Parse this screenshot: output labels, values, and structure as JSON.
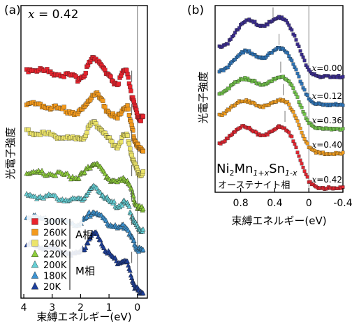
{
  "chart_data": [
    {
      "panel_label": "(a)",
      "type": "scatter",
      "annotation": "x = 0.42",
      "annotation_var": "x",
      "annotation_rest": " = 0.42",
      "xlabel": "束縛エネルギー(eV)",
      "ylabel": "光電子強度",
      "xlim": [
        4.1,
        -0.35
      ],
      "x_ticks": [
        4,
        3,
        2,
        1,
        0
      ],
      "x_tick_labels": [
        "4",
        "3",
        "2",
        "1",
        "0"
      ],
      "legend_groups": [
        {
          "name": "A相",
          "series_index": [
            0,
            1,
            2
          ]
        },
        {
          "name": "M相",
          "series_index": [
            3,
            4,
            5,
            6
          ]
        }
      ],
      "series": [
        {
          "name": "300K",
          "marker": "square",
          "color": "#e8232d",
          "fermi_step": 0.1,
          "x": [
            3.9,
            3.6,
            3.3,
            3.0,
            2.7,
            2.4,
            2.1,
            1.9,
            1.7,
            1.5,
            1.3,
            1.1,
            0.9,
            0.7,
            0.5,
            0.35,
            0.2,
            0.1,
            0.0,
            -0.1,
            -0.2
          ],
          "y": [
            0.64,
            0.64,
            0.62,
            0.6,
            0.58,
            0.55,
            0.52,
            0.56,
            0.72,
            0.8,
            0.72,
            0.58,
            0.5,
            0.44,
            0.6,
            0.6,
            0.3,
            0.15,
            0.05,
            0.0,
            0.0
          ]
        },
        {
          "name": "260K",
          "marker": "square",
          "color": "#f39a1d",
          "fermi_step": 0.1,
          "x": [
            3.9,
            3.6,
            3.3,
            3.0,
            2.7,
            2.4,
            2.1,
            1.9,
            1.7,
            1.5,
            1.3,
            1.1,
            0.9,
            0.7,
            0.5,
            0.35,
            0.2,
            0.1,
            0.0,
            -0.1,
            -0.2
          ],
          "y": [
            0.62,
            0.62,
            0.6,
            0.58,
            0.56,
            0.53,
            0.5,
            0.55,
            0.7,
            0.78,
            0.7,
            0.56,
            0.48,
            0.42,
            0.58,
            0.58,
            0.3,
            0.15,
            0.05,
            0.0,
            0.0
          ]
        },
        {
          "name": "240K",
          "marker": "square",
          "color": "#ece46a",
          "fermi_step": 0.1,
          "x": [
            3.9,
            3.6,
            3.3,
            3.0,
            2.7,
            2.4,
            2.1,
            1.9,
            1.7,
            1.5,
            1.3,
            1.1,
            0.9,
            0.7,
            0.5,
            0.35,
            0.2,
            0.1,
            0.0,
            -0.1,
            -0.2
          ],
          "y": [
            0.6,
            0.6,
            0.58,
            0.56,
            0.54,
            0.51,
            0.49,
            0.53,
            0.67,
            0.75,
            0.67,
            0.54,
            0.46,
            0.4,
            0.55,
            0.55,
            0.28,
            0.14,
            0.05,
            0.0,
            0.0
          ]
        },
        {
          "name": "220K",
          "marker": "triangle",
          "color": "#8fcf3c",
          "fermi_step": 0.1,
          "x": [
            3.9,
            3.6,
            3.3,
            3.0,
            2.7,
            2.4,
            2.1,
            1.9,
            1.7,
            1.5,
            1.3,
            1.1,
            0.9,
            0.7,
            0.5,
            0.35,
            0.2,
            0.1,
            0.0,
            -0.1,
            -0.2
          ],
          "y": [
            0.52,
            0.52,
            0.51,
            0.5,
            0.49,
            0.47,
            0.46,
            0.5,
            0.6,
            0.66,
            0.58,
            0.48,
            0.42,
            0.38,
            0.45,
            0.42,
            0.24,
            0.12,
            0.04,
            0.0,
            0.0
          ]
        },
        {
          "name": "200K",
          "marker": "triangle",
          "color": "#66d0d6",
          "fermi_step": 0.1,
          "x": [
            3.9,
            3.6,
            3.3,
            3.0,
            2.7,
            2.4,
            2.1,
            1.9,
            1.7,
            1.5,
            1.3,
            1.1,
            0.9,
            0.7,
            0.5,
            0.35,
            0.2,
            0.1,
            0.0,
            -0.1,
            -0.2
          ],
          "y": [
            0.54,
            0.54,
            0.53,
            0.52,
            0.51,
            0.49,
            0.47,
            0.52,
            0.62,
            0.68,
            0.6,
            0.49,
            0.43,
            0.38,
            0.44,
            0.4,
            0.24,
            0.12,
            0.04,
            0.0,
            0.0
          ]
        },
        {
          "name": "180K",
          "marker": "triangle",
          "color": "#3d93d1",
          "fermi_step": 0.1,
          "x": [
            3.9,
            3.6,
            3.3,
            3.0,
            2.7,
            2.4,
            2.1,
            1.9,
            1.7,
            1.5,
            1.3,
            1.1,
            0.9,
            0.7,
            0.5,
            0.35,
            0.2,
            0.1,
            0.0,
            -0.1,
            -0.2
          ],
          "y": [
            0.58,
            0.58,
            0.56,
            0.55,
            0.53,
            0.5,
            0.48,
            0.53,
            0.63,
            0.7,
            0.61,
            0.5,
            0.44,
            0.39,
            0.44,
            0.4,
            0.23,
            0.11,
            0.04,
            0.0,
            0.0
          ]
        },
        {
          "name": "20K",
          "marker": "triangle",
          "color": "#1d3f9b",
          "fermi_step": 0.1,
          "x": [
            3.9,
            3.6,
            3.3,
            3.0,
            2.7,
            2.4,
            2.1,
            1.9,
            1.7,
            1.5,
            1.3,
            1.1,
            0.9,
            0.7,
            0.5,
            0.35,
            0.2,
            0.1,
            0.0,
            -0.1,
            -0.2
          ],
          "y": [
            0.75,
            0.75,
            0.72,
            0.7,
            0.67,
            0.63,
            0.6,
            0.68,
            0.86,
            0.95,
            0.84,
            0.66,
            0.56,
            0.48,
            0.5,
            0.45,
            0.22,
            0.08,
            0.02,
            0.0,
            0.0
          ]
        }
      ]
    },
    {
      "panel_label": "(b)",
      "type": "scatter",
      "xlabel": "束縛エネルギー(eV)",
      "ylabel": "光電子強度",
      "xlim": [
        1.1,
        -0.4
      ],
      "x_ticks": [
        0.8,
        0.4,
        0,
        -0.4
      ],
      "x_tick_labels": [
        "0.8",
        "0.4",
        "0",
        "-0.4"
      ],
      "compound_label": {
        "p1": "Ni",
        "s1": "2",
        "p2": "Mn",
        "s2": "1+x",
        "p3": "Sn",
        "s3": "1-x"
      },
      "phase_label": "オーステナイト相",
      "series": [
        {
          "name": "x=0.00",
          "marker": "square",
          "color": "#3b2d8f",
          "x": [
            1.05,
            1.0,
            0.95,
            0.9,
            0.85,
            0.8,
            0.75,
            0.7,
            0.65,
            0.6,
            0.55,
            0.5,
            0.45,
            0.4,
            0.35,
            0.3,
            0.25,
            0.2,
            0.15,
            0.1,
            0.05,
            0.0,
            -0.05,
            -0.1,
            -0.15,
            -0.2,
            -0.25,
            -0.3,
            -0.35,
            -0.4
          ],
          "y": [
            0.48,
            0.5,
            0.55,
            0.65,
            0.75,
            0.83,
            0.9,
            0.92,
            0.9,
            0.85,
            0.82,
            0.84,
            0.9,
            0.95,
            0.97,
            0.95,
            0.88,
            0.75,
            0.6,
            0.42,
            0.25,
            0.1,
            0.04,
            0.01,
            0.0,
            0.0,
            0.0,
            0.0,
            0.0,
            0.0
          ]
        },
        {
          "name": "x=0.12",
          "marker": "square",
          "color": "#2f74b6",
          "x": [
            1.05,
            1.0,
            0.95,
            0.9,
            0.85,
            0.8,
            0.75,
            0.7,
            0.65,
            0.6,
            0.55,
            0.5,
            0.45,
            0.4,
            0.35,
            0.3,
            0.25,
            0.2,
            0.15,
            0.1,
            0.05,
            0.0,
            -0.05,
            -0.1,
            -0.15,
            -0.2,
            -0.25,
            -0.3,
            -0.35,
            -0.4
          ],
          "y": [
            0.52,
            0.55,
            0.6,
            0.68,
            0.75,
            0.82,
            0.85,
            0.84,
            0.8,
            0.76,
            0.74,
            0.76,
            0.82,
            0.87,
            0.9,
            0.88,
            0.82,
            0.7,
            0.55,
            0.38,
            0.22,
            0.1,
            0.04,
            0.01,
            0.0,
            0.0,
            0.0,
            0.0,
            0.0,
            0.0
          ]
        },
        {
          "name": "x=0.36",
          "marker": "square",
          "color": "#71c24a",
          "x": [
            1.05,
            1.0,
            0.95,
            0.9,
            0.85,
            0.8,
            0.75,
            0.7,
            0.65,
            0.6,
            0.55,
            0.5,
            0.45,
            0.4,
            0.35,
            0.3,
            0.25,
            0.2,
            0.15,
            0.1,
            0.05,
            0.0,
            -0.05,
            -0.1,
            -0.15,
            -0.2,
            -0.25,
            -0.3,
            -0.35,
            -0.4
          ],
          "y": [
            0.6,
            0.62,
            0.68,
            0.74,
            0.8,
            0.84,
            0.85,
            0.83,
            0.8,
            0.77,
            0.75,
            0.76,
            0.8,
            0.85,
            0.88,
            0.87,
            0.82,
            0.72,
            0.58,
            0.4,
            0.24,
            0.1,
            0.04,
            0.01,
            0.0,
            0.0,
            0.0,
            0.0,
            0.0,
            0.0
          ]
        },
        {
          "name": "x=0.40",
          "marker": "square",
          "color": "#f19d1f",
          "x": [
            1.05,
            1.0,
            0.95,
            0.9,
            0.85,
            0.8,
            0.75,
            0.7,
            0.65,
            0.6,
            0.55,
            0.5,
            0.45,
            0.4,
            0.35,
            0.3,
            0.25,
            0.2,
            0.15,
            0.1,
            0.05,
            0.0,
            -0.05,
            -0.1,
            -0.15,
            -0.2,
            -0.25,
            -0.3,
            -0.35,
            -0.4
          ],
          "y": [
            0.62,
            0.64,
            0.7,
            0.76,
            0.82,
            0.85,
            0.86,
            0.84,
            0.81,
            0.78,
            0.76,
            0.77,
            0.8,
            0.84,
            0.87,
            0.86,
            0.82,
            0.72,
            0.58,
            0.4,
            0.24,
            0.1,
            0.04,
            0.01,
            0.0,
            0.0,
            0.0,
            0.0,
            0.0,
            0.0
          ]
        },
        {
          "name": "x=0.42",
          "marker": "square",
          "color": "#e02630",
          "x": [
            1.05,
            1.0,
            0.95,
            0.9,
            0.85,
            0.8,
            0.75,
            0.7,
            0.65,
            0.6,
            0.55,
            0.5,
            0.45,
            0.4,
            0.35,
            0.3,
            0.25,
            0.2,
            0.15,
            0.1,
            0.05,
            0.0,
            -0.05,
            -0.1,
            -0.15,
            -0.2,
            -0.25,
            -0.3,
            -0.35,
            -0.4
          ],
          "y": [
            0.64,
            0.66,
            0.72,
            0.78,
            0.84,
            0.88,
            0.88,
            0.86,
            0.82,
            0.78,
            0.76,
            0.77,
            0.8,
            0.85,
            0.88,
            0.87,
            0.83,
            0.73,
            0.58,
            0.4,
            0.24,
            0.1,
            0.04,
            0.01,
            0.0,
            0.0,
            0.0,
            0.0,
            0.0,
            0.0
          ]
        }
      ]
    }
  ]
}
